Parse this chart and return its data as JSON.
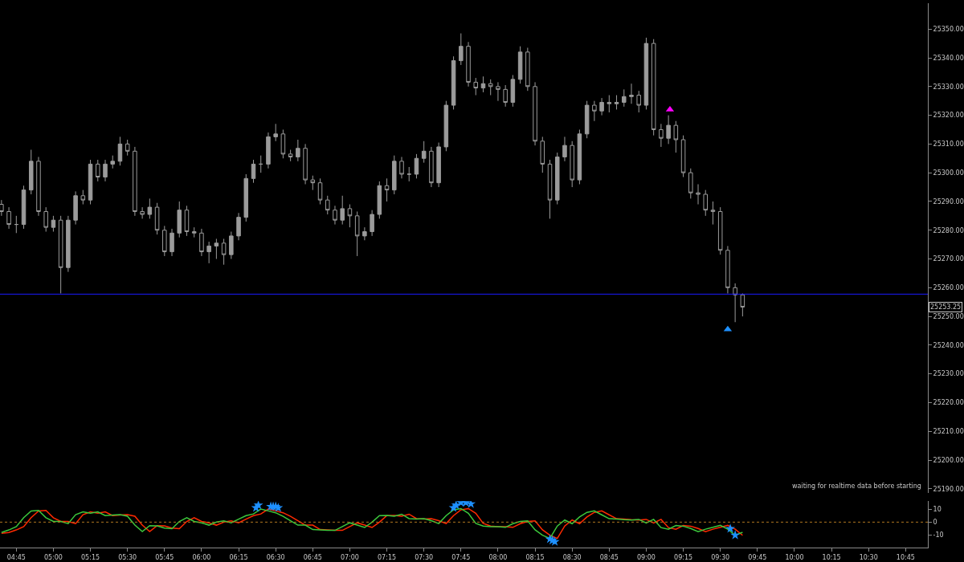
{
  "chart_data": [
    {
      "type": "candlestick",
      "tick_labels": "y",
      "xlim": [
        4.64,
        10.9
      ],
      "ylim": [
        25188.5,
        25359
      ],
      "yticks": [
        {
          "value": 25190,
          "label": "25190.00"
        },
        {
          "value": 25200,
          "label": "25200.00"
        },
        {
          "value": 25210,
          "label": "25210.00"
        },
        {
          "value": 25220,
          "label": "25220.00"
        },
        {
          "value": 25230,
          "label": "25230.00"
        },
        {
          "value": 25240,
          "label": "25240.00"
        },
        {
          "value": 25250,
          "label": "25250.00"
        },
        {
          "value": 25260,
          "label": "25260.00"
        },
        {
          "value": 25270,
          "label": "25270.00"
        },
        {
          "value": 25280,
          "label": "25280.00"
        },
        {
          "value": 25290,
          "label": "25290.00"
        },
        {
          "value": 25300,
          "label": "25300.00"
        },
        {
          "value": 25310,
          "label": "25310.00"
        },
        {
          "value": 25320,
          "label": "25320.00"
        },
        {
          "value": 25330,
          "label": "25330.00"
        },
        {
          "value": 25340,
          "label": "25340.00"
        },
        {
          "value": 25350,
          "label": "25350.00"
        }
      ],
      "ref_lines": [
        {
          "axis": "y",
          "value": 25257.75,
          "color": "#1a1aff",
          "line_style": "solid"
        }
      ],
      "annotations": [
        "waiting for realtime data before starting",
        "25253.25"
      ],
      "series": [
        {
          "type": "scatter",
          "color": "#ff00ff",
          "marker": "triangle",
          "x": [
            9.16
          ],
          "values": [
            25322
          ]
        },
        {
          "type": "scatter",
          "color": "#1e90ff",
          "marker": "triangle",
          "x": [
            9.55
          ],
          "values": [
            25245.5
          ]
        },
        {
          "type": "candlestick",
          "color": "#9b9b9b",
          "x": [
            4.65,
            4.7,
            4.75,
            4.8,
            4.85,
            4.9,
            4.95,
            5,
            5.05,
            5.1,
            5.15,
            5.2,
            5.25,
            5.3,
            5.35,
            5.4,
            5.45,
            5.5,
            5.55,
            5.6,
            5.65,
            5.7,
            5.75,
            5.8,
            5.85,
            5.9,
            5.95,
            6,
            6.05,
            6.1,
            6.15,
            6.2,
            6.25,
            6.3,
            6.35,
            6.4,
            6.45,
            6.5,
            6.55,
            6.6,
            6.65,
            6.7,
            6.75,
            6.8,
            6.85,
            6.9,
            6.95,
            7,
            7.05,
            7.1,
            7.15,
            7.2,
            7.25,
            7.3,
            7.35,
            7.4,
            7.45,
            7.5,
            7.55,
            7.6,
            7.65,
            7.7,
            7.75,
            7.8,
            7.85,
            7.9,
            7.95,
            8,
            8.05,
            8.1,
            8.15,
            8.2,
            8.25,
            8.3,
            8.35,
            8.4,
            8.45,
            8.5,
            8.55,
            8.6,
            8.65,
            8.7,
            8.75,
            8.8,
            8.85,
            8.9,
            8.95,
            9,
            9.05,
            9.1,
            9.15,
            9.2,
            9.25,
            9.3,
            9.35,
            9.4,
            9.45,
            9.5,
            9.55,
            9.6,
            9.65
          ],
          "ohlc": [
            [
              25289,
              25290.5,
              25285,
              25286.5
            ],
            [
              25286.5,
              25288,
              25280.5,
              25282
            ],
            [
              25282,
              25285,
              25279,
              25282
            ],
            [
              25282,
              25295.5,
              25280.5,
              25294
            ],
            [
              25294,
              25308,
              25292.5,
              25304
            ],
            [
              25304,
              25305.5,
              25285,
              25286.5
            ],
            [
              25286.5,
              25288,
              25279.5,
              25281
            ],
            [
              25281,
              25285,
              25279.5,
              25283.5
            ],
            [
              25283.5,
              25285,
              25258,
              25267
            ],
            [
              25267,
              25285,
              25265.5,
              25283.5
            ],
            [
              25283.5,
              25293.5,
              25282,
              25292
            ],
            [
              25292,
              25294,
              25289,
              25290.5
            ],
            [
              25290.5,
              25304.5,
              25289,
              25303
            ],
            [
              25303,
              25304.5,
              25297,
              25298.5
            ],
            [
              25298.5,
              25304.5,
              25297,
              25303
            ],
            [
              25303,
              25306,
              25301.5,
              25304
            ],
            [
              25304,
              25312.5,
              25302.5,
              25310
            ],
            [
              25310,
              25311.5,
              25306,
              25307.5
            ],
            [
              25307.5,
              25309,
              25285,
              25286.5
            ],
            [
              25286.5,
              25288,
              25284,
              25285.5
            ],
            [
              25285.5,
              25291,
              25284,
              25288
            ],
            [
              25288,
              25289.5,
              25278.5,
              25280
            ],
            [
              25280,
              25281.5,
              25271,
              25272.5
            ],
            [
              25272.5,
              25280.5,
              25271,
              25279
            ],
            [
              25279,
              25290,
              25277.5,
              25287
            ],
            [
              25287,
              25288.5,
              25278,
              25279.5
            ],
            [
              25279.5,
              25281,
              25277.5,
              25279
            ],
            [
              25279,
              25280.5,
              25271,
              25272.5
            ],
            [
              25272.5,
              25276,
              25268.5,
              25274.5
            ],
            [
              25274.5,
              25277,
              25270,
              25275.5
            ],
            [
              25275.5,
              25277,
              25268,
              25271.5
            ],
            [
              25271.5,
              25279.5,
              25270,
              25278
            ],
            [
              25278,
              25286,
              25276.5,
              25284.5
            ],
            [
              25284.5,
              25299.5,
              25283,
              25298
            ],
            [
              25298,
              25304.5,
              25296.5,
              25303
            ],
            [
              25303,
              25306,
              25300,
              25303
            ],
            [
              25303,
              25314,
              25301.5,
              25312.5
            ],
            [
              25312.5,
              25317,
              25311,
              25313.5
            ],
            [
              25313.5,
              25315,
              25305,
              25306.5
            ],
            [
              25306.5,
              25308,
              25304,
              25305.5
            ],
            [
              25305.5,
              25311.5,
              25304,
              25308.5
            ],
            [
              25308.5,
              25310,
              25296,
              25297.5
            ],
            [
              25297.5,
              25299,
              25294,
              25296.5
            ],
            [
              25296.5,
              25298,
              25289,
              25290.5
            ],
            [
              25290.5,
              25292,
              25285.5,
              25287
            ],
            [
              25287,
              25288.5,
              25282,
              25283.5
            ],
            [
              25283.5,
              25292,
              25282,
              25287.5
            ],
            [
              25287.5,
              25289,
              25281,
              25285
            ],
            [
              25285,
              25286.5,
              25271,
              25278
            ],
            [
              25278,
              25281,
              25276.5,
              25279.5
            ],
            [
              25279.5,
              25287,
              25278,
              25285.5
            ],
            [
              25285.5,
              25297,
              25284,
              25295.5
            ],
            [
              25295.5,
              25298,
              25290,
              25294
            ],
            [
              25294,
              25306,
              25292.5,
              25304
            ],
            [
              25304,
              25305.5,
              25298,
              25299.5
            ],
            [
              25299.5,
              25302,
              25297,
              25299.5
            ],
            [
              25299.5,
              25306.5,
              25298,
              25305
            ],
            [
              25305,
              25311,
              25303.5,
              25307.5
            ],
            [
              25307.5,
              25309,
              25295,
              25296.5
            ],
            [
              25296.5,
              25310.5,
              25295,
              25309
            ],
            [
              25309,
              25325,
              25307.5,
              25323.5
            ],
            [
              25323.5,
              25340.5,
              25322,
              25339
            ],
            [
              25339,
              25348.5,
              25337.5,
              25344
            ],
            [
              25344,
              25345.5,
              25330,
              25331.5
            ],
            [
              25331.5,
              25333,
              25327,
              25329.5
            ],
            [
              25329.5,
              25333.5,
              25328,
              25331
            ],
            [
              25331,
              25332.5,
              25327,
              25330
            ],
            [
              25330,
              25331.5,
              25325,
              25329
            ],
            [
              25329,
              25330.5,
              25323,
              25324.5
            ],
            [
              25324.5,
              25334,
              25323,
              25332.5
            ],
            [
              25332.5,
              25344,
              25331,
              25342
            ],
            [
              25342,
              25343.5,
              25328.5,
              25330
            ],
            [
              25330,
              25331.5,
              25309.5,
              25311
            ],
            [
              25311,
              25312.5,
              25300,
              25303
            ],
            [
              25303,
              25304.5,
              25284,
              25290.5
            ],
            [
              25290.5,
              25307,
              25289,
              25305.5
            ],
            [
              25305.5,
              25312.5,
              25304,
              25309.5
            ],
            [
              25309.5,
              25311,
              25295,
              25297.5
            ],
            [
              25297.5,
              25315,
              25296,
              25313.5
            ],
            [
              25313.5,
              25325,
              25312,
              25323.5
            ],
            [
              25323.5,
              25325,
              25318,
              25321.5
            ],
            [
              25321.5,
              25326,
              25320,
              25324.5
            ],
            [
              25324.5,
              25327,
              25321,
              25324
            ],
            [
              25324,
              25327,
              25322,
              25324.5
            ],
            [
              25324.5,
              25329,
              25323,
              25326.5
            ],
            [
              25326.5,
              25331,
              25324,
              25327
            ],
            [
              25327,
              25328.5,
              25321,
              25323.5
            ],
            [
              25323.5,
              25347,
              25322,
              25345
            ],
            [
              25345,
              25346.5,
              25313,
              25315
            ],
            [
              25315,
              25317,
              25309,
              25312
            ],
            [
              25312,
              25320,
              25310,
              25316.5
            ],
            [
              25316.5,
              25318,
              25307,
              25311.5
            ],
            [
              25311.5,
              25313,
              25298.5,
              25300
            ],
            [
              25300,
              25301.5,
              25291,
              25293
            ],
            [
              25293,
              25296,
              25289,
              25292.5
            ],
            [
              25292.5,
              25294,
              25285,
              25287
            ],
            [
              25287,
              25290,
              25282,
              25286.5
            ],
            [
              25286.5,
              25288,
              25271.5,
              25273
            ],
            [
              25273,
              25274.5,
              25258,
              25260
            ],
            [
              25260,
              25261.5,
              25248,
              25257.5
            ],
            [
              25257.5,
              25258,
              25250,
              25253.25
            ]
          ]
        }
      ]
    },
    {
      "type": "line",
      "xlim": [
        4.64,
        10.9
      ],
      "ylim": [
        -19.5,
        16
      ],
      "yticks": [
        10,
        0,
        -10
      ],
      "line_style": "solid",
      "xticks": [
        {
          "value": 4.75,
          "label": "04:45"
        },
        {
          "value": 5,
          "label": "05:00"
        },
        {
          "value": 5.25,
          "label": "05:15"
        },
        {
          "value": 5.5,
          "label": "05:30"
        },
        {
          "value": 5.75,
          "label": "05:45"
        },
        {
          "value": 6,
          "label": "06:00"
        },
        {
          "value": 6.25,
          "label": "06:15"
        },
        {
          "value": 6.5,
          "label": "06:30"
        },
        {
          "value": 6.75,
          "label": "06:45"
        },
        {
          "value": 7,
          "label": "07:00"
        },
        {
          "value": 7.25,
          "label": "07:15"
        },
        {
          "value": 7.5,
          "label": "07:30"
        },
        {
          "value": 7.75,
          "label": "07:45"
        },
        {
          "value": 8,
          "label": "08:00"
        },
        {
          "value": 8.25,
          "label": "08:15"
        },
        {
          "value": 8.5,
          "label": "08:30"
        },
        {
          "value": 8.75,
          "label": "08:45"
        },
        {
          "value": 9,
          "label": "09:00"
        },
        {
          "value": 9.25,
          "label": "09:15"
        },
        {
          "value": 9.5,
          "label": "09:30"
        },
        {
          "value": 9.75,
          "label": "09:45"
        },
        {
          "value": 10,
          "label": "10:00"
        },
        {
          "value": 10.25,
          "label": "10:15"
        },
        {
          "value": 10.5,
          "label": "10:30"
        },
        {
          "value": 10.75,
          "label": "10:45"
        }
      ],
      "ref_lines": [
        {
          "axis": "y",
          "value": 0,
          "color": "#b07820",
          "line_style": "dotted"
        }
      ],
      "x": [
        4.65,
        4.7,
        4.75,
        4.8,
        4.85,
        4.9,
        4.95,
        5,
        5.05,
        5.1,
        5.15,
        5.2,
        5.25,
        5.3,
        5.35,
        5.4,
        5.45,
        5.5,
        5.55,
        5.6,
        5.65,
        5.7,
        5.75,
        5.8,
        5.85,
        5.9,
        5.95,
        6,
        6.05,
        6.1,
        6.15,
        6.2,
        6.25,
        6.3,
        6.35,
        6.4,
        6.45,
        6.5,
        6.55,
        6.6,
        6.65,
        6.7,
        6.75,
        6.8,
        6.85,
        6.9,
        6.95,
        7,
        7.05,
        7.1,
        7.15,
        7.2,
        7.25,
        7.3,
        7.35,
        7.4,
        7.45,
        7.5,
        7.55,
        7.6,
        7.65,
        7.7,
        7.75,
        7.8,
        7.85,
        7.9,
        7.95,
        8,
        8.05,
        8.1,
        8.15,
        8.2,
        8.25,
        8.3,
        8.35,
        8.4,
        8.45,
        8.5,
        8.55,
        8.6,
        8.65,
        8.7,
        8.75,
        8.8,
        8.85,
        8.9,
        8.95,
        9,
        9.05,
        9.1,
        9.15,
        9.2,
        9.25,
        9.3,
        9.35,
        9.4,
        9.45,
        9.5,
        9.55,
        9.6,
        9.65
      ],
      "series": [
        {
          "color": "#ff2a00",
          "values": [
            -8.5,
            -7.9,
            -6,
            -3.4,
            3.4,
            8.6,
            9,
            3.4,
            0.5,
            0.5,
            -1.1,
            5.7,
            7.9,
            6.8,
            7.9,
            5,
            5.4,
            5.7,
            4.5,
            -2.3,
            -7.2,
            -2.7,
            -2.9,
            -4.5,
            -5,
            0.5,
            3.4,
            0.5,
            -0.5,
            -2.3,
            0,
            0.9,
            -0.5,
            2.3,
            5,
            6.3,
            10,
            8.6,
            7.2,
            4.5,
            1.1,
            -2.3,
            -2.3,
            -5.7,
            -5.9,
            -6.3,
            -6.3,
            -3.4,
            -0.5,
            -2.3,
            -4.1,
            0,
            5,
            5.2,
            4.5,
            6.1,
            2.7,
            2.3,
            2.7,
            1.1,
            -1.1,
            5,
            9.5,
            10.4,
            6.8,
            -1,
            -3,
            -3.5,
            -3.5,
            -4,
            -1.2,
            0.5,
            1,
            -5.9,
            -10,
            -12.5,
            -3,
            1.6,
            -1.2,
            4,
            7.5,
            8.7,
            5.6,
            2.6,
            2.4,
            1.9,
            1.6,
            2.1,
            -0.7,
            2.1,
            -4.2,
            -5.4,
            -2.6,
            -3.1,
            -4.9,
            -7.3,
            -5.4,
            -4,
            -2.4,
            -5.4,
            -10.1
          ]
        },
        {
          "color": "#3cc83c",
          "values": [
            -7.9,
            -6,
            -3.4,
            3.4,
            8.6,
            9,
            3.4,
            0.5,
            0.5,
            -1.1,
            5.7,
            7.9,
            6.8,
            7.9,
            5,
            5.4,
            5.7,
            4.5,
            -2.3,
            -7.2,
            -2.7,
            -2.9,
            -4.5,
            -5,
            0.5,
            3.4,
            0.5,
            -0.5,
            -2.3,
            0,
            0.9,
            -0.5,
            2.3,
            5,
            6.3,
            10,
            8.6,
            7.2,
            4.5,
            1.1,
            -2.3,
            -2.3,
            -5.7,
            -5.9,
            -6.3,
            -6.3,
            -3.4,
            -0.5,
            -2.3,
            -4.1,
            0,
            5,
            5.2,
            4.5,
            6.1,
            2.7,
            2.3,
            2.7,
            1.1,
            -1.1,
            5,
            9.5,
            10.4,
            6.8,
            -1,
            -3,
            -3.5,
            -3.5,
            -4,
            -1.2,
            0.5,
            1,
            -5.9,
            -10,
            -12.5,
            -3,
            1.6,
            -1.2,
            4,
            7.5,
            8.7,
            5.6,
            2.6,
            2.4,
            1.9,
            1.6,
            2.1,
            -0.7,
            2.1,
            -4.2,
            -5.4,
            -2.6,
            -3.1,
            -4.9,
            -7.3,
            -5.4,
            -4,
            -2.4,
            -5.4,
            -10.1,
            -7.8
          ]
        },
        {
          "type": "scatter",
          "color": "#1e90ff",
          "marker": "star",
          "x": [
            6.367,
            6.383,
            6.467,
            6.483,
            6.5,
            6.517,
            7.7,
            7.717,
            7.75,
            7.783,
            7.817,
            8.35,
            8.367,
            8.383,
            9.567,
            9.6
          ],
          "values": [
            11,
            13,
            12,
            12,
            12,
            11,
            11,
            13,
            15,
            15,
            14,
            -13,
            -14,
            -15,
            -5,
            -10
          ]
        }
      ]
    }
  ]
}
